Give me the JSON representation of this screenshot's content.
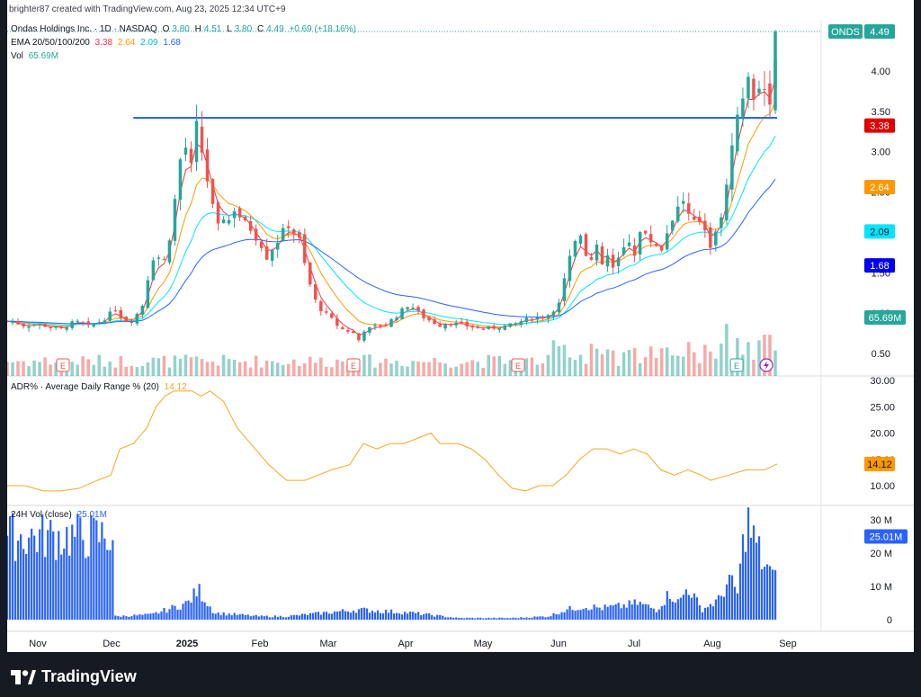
{
  "header": {
    "created_line": "brighter87 created with TradingView.com, Aug 23, 2025 12:34 UTC+9"
  },
  "legend": {
    "symbol_line": "Ondas Holdings Inc. · 1D · NASDAQ",
    "ohlc": {
      "o_label": "O",
      "o": "3.80",
      "h_label": "H",
      "h": "4.51",
      "l_label": "L",
      "l": "3.80",
      "c_label": "C",
      "c": "4.49",
      "chg": "+0.69 (+18.16%)"
    },
    "ema_label": "EMA 20/50/100/200",
    "ema_values": [
      "3.38",
      "2.64",
      "2.09",
      "1.68"
    ],
    "vol_label": "Vol",
    "vol_value": "65.69M",
    "adr_label": "ADR% · Average Daily Range % (20)",
    "adr_value": "14.12",
    "h24_label": "24H Vol (close)",
    "h24_value": "25.01M"
  },
  "colors": {
    "up": "#26a69a",
    "down": "#ef5350",
    "ema20": "#f23645",
    "ema50": "#ff9800",
    "ema100": "#00e5ff",
    "ema200": "#2962ff",
    "adr": "#f5a623",
    "h24": "#2962ff",
    "hline": "#2962ff"
  },
  "price_axis": {
    "ticks": [
      "4.00",
      "3.50",
      "3.00",
      "2.50",
      "2.00",
      "1.50",
      "1.00",
      "0.50"
    ],
    "symbol_tag": "ONDS",
    "last_price": "4.49",
    "ema_tags": [
      "3.38",
      "2.64",
      "2.09",
      "1.68"
    ],
    "vol_tag": "65.69M"
  },
  "adr_axis": {
    "ticks": [
      "30.00",
      "25.00",
      "20.00",
      "15.00",
      "10.00"
    ],
    "tag": "14.12"
  },
  "h24_axis": {
    "ticks": [
      "30 M",
      "20 M",
      "10 M",
      "0"
    ],
    "tag": "25.01M"
  },
  "time_axis": [
    "Nov",
    "Dec",
    "2025",
    "Feb",
    "Mar",
    "Apr",
    "May",
    "Jun",
    "Jul",
    "Aug",
    "Sep"
  ],
  "brand": {
    "name": "TradingView"
  },
  "chart_data": {
    "type": "candlestick",
    "ylim": [
      0.2,
      4.7
    ],
    "horizontal_line": 3.42,
    "earnings_markers": [
      "Nov",
      "Mar",
      "May",
      "Aug"
    ],
    "ohlc_last": {
      "o": 3.8,
      "h": 4.51,
      "l": 3.8,
      "c": 4.49
    },
    "close_path": [
      [
        0,
        0.9
      ],
      [
        10,
        0.88
      ],
      [
        20,
        0.84
      ],
      [
        30,
        0.86
      ],
      [
        40,
        0.85
      ],
      [
        50,
        0.82
      ],
      [
        60,
        0.8
      ],
      [
        70,
        0.87
      ],
      [
        80,
        0.89
      ],
      [
        90,
        0.83
      ],
      [
        100,
        0.88
      ],
      [
        110,
        0.95
      ],
      [
        120,
        1.05
      ],
      [
        130,
        0.9
      ],
      [
        140,
        0.92
      ],
      [
        150,
        1.1
      ],
      [
        158,
        1.55
      ],
      [
        165,
        1.8
      ],
      [
        172,
        1.55
      ],
      [
        180,
        1.95
      ],
      [
        186,
        2.4
      ],
      [
        192,
        2.9
      ],
      [
        198,
        3.05
      ],
      [
        204,
        2.8
      ],
      [
        210,
        3.3
      ],
      [
        216,
        3.0
      ],
      [
        222,
        2.65
      ],
      [
        228,
        2.3
      ],
      [
        234,
        2.05
      ],
      [
        240,
        2.2
      ],
      [
        246,
        2.15
      ],
      [
        252,
        2.3
      ],
      [
        258,
        2.2
      ],
      [
        264,
        2.1
      ],
      [
        270,
        2.05
      ],
      [
        276,
        1.95
      ],
      [
        282,
        1.85
      ],
      [
        288,
        1.7
      ],
      [
        294,
        1.8
      ],
      [
        300,
        1.9
      ],
      [
        306,
        2.0
      ],
      [
        312,
        2.1
      ],
      [
        318,
        2.0
      ],
      [
        324,
        1.9
      ],
      [
        330,
        1.6
      ],
      [
        336,
        1.35
      ],
      [
        342,
        1.15
      ],
      [
        348,
        1.05
      ],
      [
        354,
        0.98
      ],
      [
        360,
        0.92
      ],
      [
        366,
        0.85
      ],
      [
        372,
        0.8
      ],
      [
        378,
        0.78
      ],
      [
        384,
        0.75
      ],
      [
        388,
        0.55
      ],
      [
        392,
        0.78
      ],
      [
        400,
        0.8
      ],
      [
        410,
        0.84
      ],
      [
        420,
        0.86
      ],
      [
        430,
        0.95
      ],
      [
        440,
        1.05
      ],
      [
        446,
        1.12
      ],
      [
        452,
        1.05
      ],
      [
        460,
        0.96
      ],
      [
        470,
        0.9
      ],
      [
        480,
        0.85
      ],
      [
        490,
        0.88
      ],
      [
        500,
        0.86
      ],
      [
        510,
        0.84
      ],
      [
        520,
        0.82
      ],
      [
        530,
        0.8
      ],
      [
        540,
        0.82
      ],
      [
        550,
        0.84
      ],
      [
        560,
        0.85
      ],
      [
        570,
        0.9
      ],
      [
        580,
        0.93
      ],
      [
        590,
        0.95
      ],
      [
        600,
        0.98
      ],
      [
        606,
        1.05
      ],
      [
        612,
        1.15
      ],
      [
        618,
        1.45
      ],
      [
        624,
        1.7
      ],
      [
        630,
        1.9
      ],
      [
        636,
        2.0
      ],
      [
        642,
        1.75
      ],
      [
        648,
        1.65
      ],
      [
        654,
        1.8
      ],
      [
        660,
        1.6
      ],
      [
        666,
        1.7
      ],
      [
        672,
        1.55
      ],
      [
        678,
        1.65
      ],
      [
        684,
        1.8
      ],
      [
        690,
        1.9
      ],
      [
        696,
        1.75
      ],
      [
        702,
        2.0
      ],
      [
        708,
        1.95
      ],
      [
        714,
        1.9
      ],
      [
        720,
        1.85
      ],
      [
        726,
        1.8
      ],
      [
        732,
        2.0
      ],
      [
        738,
        2.2
      ],
      [
        744,
        2.3
      ],
      [
        750,
        2.4
      ],
      [
        756,
        2.2
      ],
      [
        762,
        2.1
      ],
      [
        768,
        2.15
      ],
      [
        774,
        2.05
      ],
      [
        780,
        1.85
      ],
      [
        786,
        2.05
      ],
      [
        792,
        2.15
      ],
      [
        798,
        2.6
      ],
      [
        804,
        3.0
      ],
      [
        810,
        3.4
      ],
      [
        816,
        3.7
      ],
      [
        820,
        4.0
      ],
      [
        826,
        3.6
      ],
      [
        832,
        3.9
      ],
      [
        838,
        3.7
      ],
      [
        844,
        3.6
      ],
      [
        849,
        3.8
      ],
      [
        854,
        4.49
      ]
    ],
    "adr_path": [
      [
        0,
        10
      ],
      [
        20,
        10
      ],
      [
        40,
        9
      ],
      [
        60,
        9
      ],
      [
        80,
        9.5
      ],
      [
        100,
        11
      ],
      [
        115,
        12
      ],
      [
        125,
        17
      ],
      [
        140,
        18
      ],
      [
        155,
        21
      ],
      [
        165,
        25
      ],
      [
        175,
        27
      ],
      [
        185,
        28
      ],
      [
        195,
        28
      ],
      [
        205,
        28
      ],
      [
        215,
        27
      ],
      [
        225,
        28
      ],
      [
        240,
        26
      ],
      [
        255,
        21
      ],
      [
        270,
        18
      ],
      [
        290,
        14
      ],
      [
        310,
        11
      ],
      [
        330,
        11
      ],
      [
        345,
        12
      ],
      [
        360,
        13
      ],
      [
        380,
        14
      ],
      [
        395,
        18
      ],
      [
        410,
        17
      ],
      [
        425,
        18
      ],
      [
        440,
        18
      ],
      [
        455,
        19
      ],
      [
        470,
        20
      ],
      [
        480,
        18
      ],
      [
        500,
        18
      ],
      [
        515,
        17
      ],
      [
        530,
        15
      ],
      [
        545,
        12
      ],
      [
        560,
        9.5
      ],
      [
        575,
        9
      ],
      [
        590,
        10
      ],
      [
        605,
        10
      ],
      [
        620,
        12
      ],
      [
        635,
        15
      ],
      [
        650,
        17
      ],
      [
        665,
        17
      ],
      [
        680,
        16
      ],
      [
        695,
        17
      ],
      [
        710,
        16
      ],
      [
        725,
        13
      ],
      [
        740,
        12
      ],
      [
        755,
        13
      ],
      [
        770,
        12
      ],
      [
        780,
        11
      ],
      [
        800,
        12
      ],
      [
        820,
        13
      ],
      [
        840,
        13
      ],
      [
        854,
        14.12
      ]
    ],
    "h24_path": [
      [
        120,
        1
      ],
      [
        160,
        1.5
      ],
      [
        200,
        5
      ],
      [
        212,
        9
      ],
      [
        230,
        2
      ],
      [
        280,
        1
      ],
      [
        310,
        1
      ],
      [
        390,
        3
      ],
      [
        450,
        2
      ],
      [
        500,
        0.5
      ],
      [
        560,
        0.5
      ],
      [
        600,
        1
      ],
      [
        620,
        3
      ],
      [
        640,
        4
      ],
      [
        660,
        3.5
      ],
      [
        680,
        4
      ],
      [
        700,
        5
      ],
      [
        720,
        3
      ],
      [
        735,
        8
      ],
      [
        745,
        5
      ],
      [
        755,
        10
      ],
      [
        770,
        3
      ],
      [
        790,
        6
      ],
      [
        800,
        12
      ],
      [
        810,
        8
      ],
      [
        820,
        31
      ],
      [
        826,
        25
      ],
      [
        832,
        22
      ],
      [
        838,
        17
      ],
      [
        844,
        15
      ],
      [
        849,
        12
      ],
      [
        854,
        25.01
      ]
    ]
  }
}
